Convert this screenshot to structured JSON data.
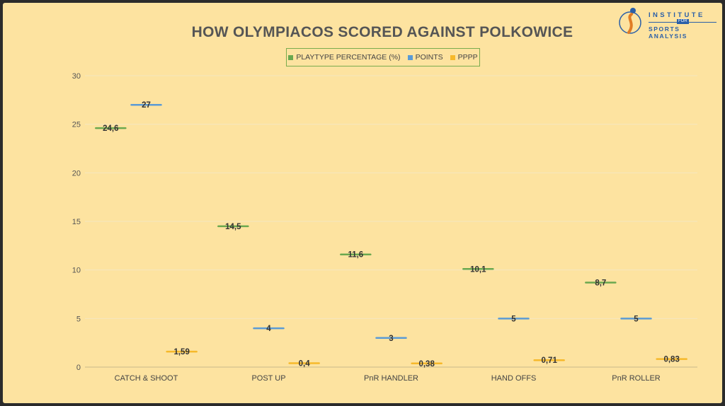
{
  "logo": {
    "top": "INSTITUTE",
    "mid": "FOR",
    "bottom": "SPORTS ANALYSIS"
  },
  "chart_data": {
    "type": "scatter",
    "title": "HOW OLYMPIACOS SCORED AGAINST POLKOWICE",
    "categories": [
      "CATCH & SHOOT",
      "POST UP",
      "PnR HANDLER",
      "HAND OFFS",
      "PnR ROLLER"
    ],
    "series": [
      {
        "name": "PLAYTYPE PERCENTAGE (%)",
        "color": "#6aa84f",
        "values": [
          24.6,
          14.5,
          11.6,
          10.1,
          8.7
        ],
        "labels": [
          "24,6",
          "14,5",
          "11,6",
          "10,1",
          "8,7"
        ]
      },
      {
        "name": "POINTS",
        "color": "#5b9bd5",
        "values": [
          27,
          4,
          3,
          5,
          5
        ],
        "labels": [
          "27",
          "4",
          "3",
          "5",
          "5"
        ]
      },
      {
        "name": "PPPP",
        "color": "#f6b92b",
        "values": [
          1.59,
          0.4,
          0.38,
          0.71,
          0.83
        ],
        "labels": [
          "1,59",
          "0,4",
          "0,38",
          "0,71",
          "0,83"
        ]
      }
    ],
    "ylim": [
      0,
      30
    ],
    "yticks": [
      0,
      5,
      10,
      15,
      20,
      25,
      30
    ],
    "grid": true,
    "legend_position": "top"
  }
}
